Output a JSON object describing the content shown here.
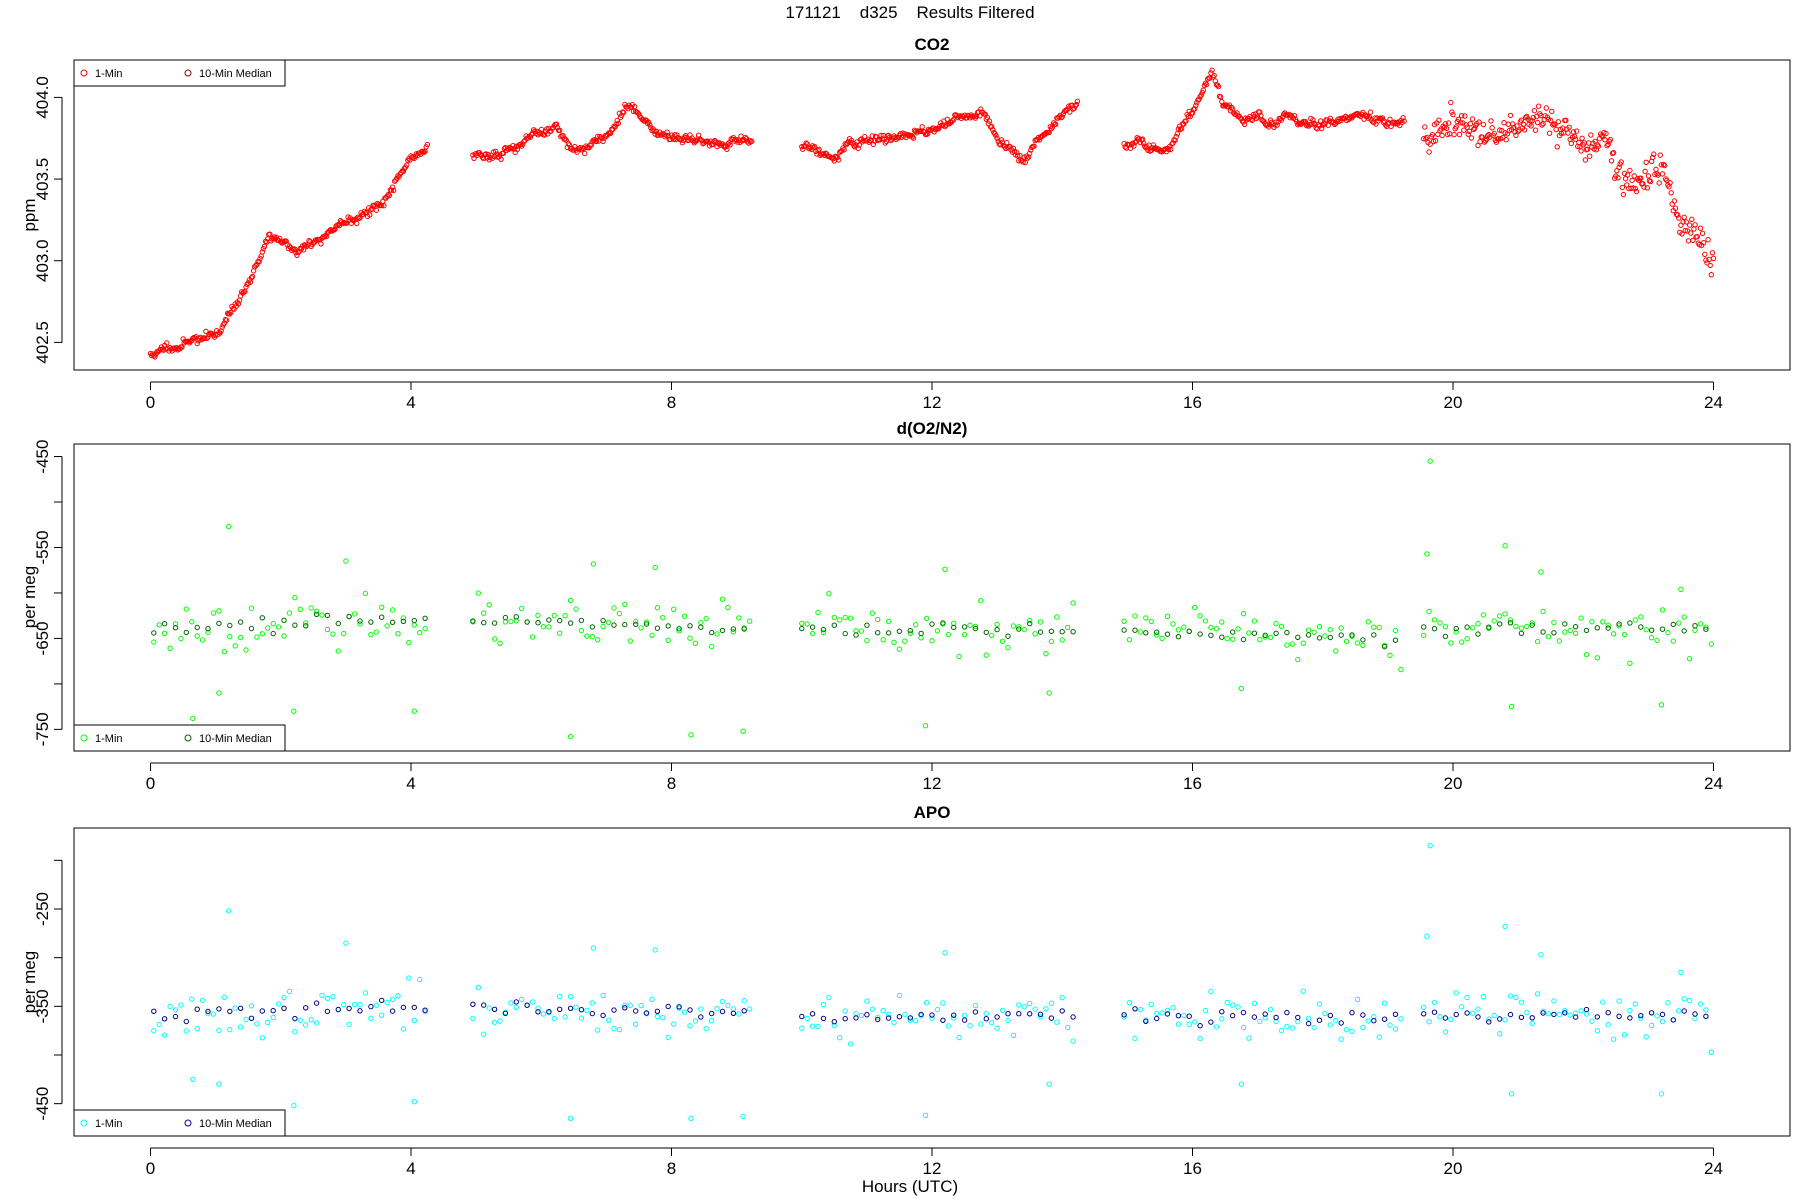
{
  "figure": {
    "suptitle": "171121    d325    Results Filtered",
    "xlabel": "Hours (UTC)"
  },
  "chart_data": [
    {
      "type": "scatter",
      "title": "CO2",
      "ylabel": "ppm",
      "xlim": [
        -0.96,
        24.96
      ],
      "ylim": [
        402.38,
        404.18
      ],
      "xticks": [
        0,
        4,
        8,
        12,
        16,
        20,
        24
      ],
      "yticks": [
        402.5,
        403.0,
        403.5,
        404.0
      ],
      "ytick_labels": [
        "402.5",
        "403.0",
        "403.5",
        "404.0"
      ],
      "legend": {
        "position": "top-left",
        "entries": [
          "1-Min",
          "10-Min Median"
        ]
      },
      "colors": {
        "one_min": "#ff0000",
        "median": "#8b0000"
      },
      "style": "continuous",
      "segments": [
        [
          0.0,
          4.25
        ],
        [
          4.95,
          9.25
        ],
        [
          10.0,
          14.25
        ],
        [
          14.95,
          19.25
        ],
        [
          19.55,
          24.0
        ]
      ],
      "series": [
        {
          "name": "1-Min",
          "color": "#ff0000",
          "x": [
            0.0,
            0.5,
            1.0,
            1.5,
            1.8,
            2.0,
            2.2,
            2.5,
            3.0,
            3.5,
            4.0,
            4.25,
            4.95,
            5.5,
            6.0,
            6.2,
            6.5,
            7.0,
            7.4,
            7.7,
            8.0,
            8.5,
            9.0,
            9.25,
            10.0,
            10.5,
            11.0,
            11.5,
            12.0,
            12.5,
            12.8,
            13.0,
            13.4,
            13.7,
            14.0,
            14.25,
            14.95,
            15.3,
            15.6,
            16.0,
            16.3,
            16.5,
            16.8,
            17.0,
            17.5,
            18.0,
            18.5,
            19.0,
            19.25,
            19.55,
            20.0,
            20.5,
            21.0,
            21.5,
            22.0,
            22.3,
            22.6,
            22.9,
            23.2,
            23.5,
            23.8,
            24.0
          ],
          "y": [
            402.42,
            402.5,
            402.55,
            402.85,
            403.15,
            403.15,
            403.05,
            403.1,
            403.25,
            403.35,
            403.6,
            403.68,
            403.65,
            403.68,
            403.78,
            403.85,
            403.72,
            403.75,
            403.95,
            403.78,
            403.75,
            403.68,
            403.72,
            403.7,
            403.7,
            403.65,
            403.72,
            403.8,
            403.8,
            403.88,
            403.82,
            403.7,
            403.6,
            403.75,
            403.85,
            403.95,
            403.7,
            403.65,
            403.7,
            403.9,
            404.2,
            403.95,
            403.88,
            403.9,
            403.9,
            403.88,
            403.9,
            403.86,
            403.85,
            403.75,
            403.85,
            403.75,
            403.8,
            403.85,
            403.7,
            403.78,
            403.55,
            403.45,
            403.55,
            403.25,
            403.2,
            402.95
          ]
        }
      ]
    },
    {
      "type": "scatter",
      "title": "d(O2/N2)",
      "ylabel": "per meg",
      "xlim": [
        -0.96,
        24.96
      ],
      "ylim": [
        -765,
        -445
      ],
      "xticks": [
        0,
        4,
        8,
        12,
        16,
        20,
        24
      ],
      "yticks": [
        -750,
        -700,
        -650,
        -600,
        -550,
        -500,
        -450
      ],
      "ytick_labels": [
        "-750",
        "",
        "-650",
        "",
        "-550",
        "",
        "-450"
      ],
      "legend": {
        "position": "bottom-left",
        "entries": [
          "1-Min",
          "10-Min Median"
        ]
      },
      "colors": {
        "one_min": "#00ff00",
        "median": "#006400"
      },
      "style": "noisy",
      "segments": [
        [
          0.05,
          4.25
        ],
        [
          4.95,
          9.25
        ],
        [
          10.0,
          14.25
        ],
        [
          14.95,
          19.25
        ],
        [
          19.55,
          24.0
        ]
      ],
      "series": [
        {
          "name": "1-Min",
          "color": "#00ff00",
          "x": [
            0.0,
            4.0,
            4.95,
            9.25,
            10.0,
            14.25,
            14.95,
            19.25,
            19.55,
            24.0
          ],
          "y": [
            -640,
            -628,
            -632,
            -640,
            -640,
            -642,
            -642,
            -650,
            -638,
            -640
          ]
        }
      ],
      "outliers": [
        [
          1.2,
          -527
        ],
        [
          1.05,
          -710
        ],
        [
          0.65,
          -738
        ],
        [
          2.2,
          -730
        ],
        [
          4.05,
          -730
        ],
        [
          3.0,
          -565
        ],
        [
          6.45,
          -758
        ],
        [
          6.8,
          -568
        ],
        [
          7.75,
          -572
        ],
        [
          8.3,
          -756
        ],
        [
          9.1,
          -752
        ],
        [
          12.2,
          -574
        ],
        [
          11.9,
          -746
        ],
        [
          13.8,
          -710
        ],
        [
          16.75,
          -705
        ],
        [
          19.65,
          -455
        ],
        [
          19.6,
          -557
        ],
        [
          20.8,
          -548
        ],
        [
          20.9,
          -725
        ],
        [
          21.35,
          -577
        ],
        [
          23.2,
          -723
        ],
        [
          23.5,
          -596
        ]
      ]
    },
    {
      "type": "scatter",
      "title": "APO",
      "ylabel": "per meg",
      "xlim": [
        -0.96,
        24.96
      ],
      "ylim": [
        -475,
        -175
      ],
      "xticks": [
        0,
        4,
        8,
        12,
        16,
        20,
        24
      ],
      "yticks": [
        -450,
        -400,
        -350,
        -300,
        -250,
        -200
      ],
      "ytick_labels": [
        "-450",
        "",
        "-350",
        "",
        "-250",
        ""
      ],
      "legend": {
        "position": "bottom-left",
        "entries": [
          "1-Min",
          "10-Min Median"
        ]
      },
      "colors": {
        "one_min": "#00ffff",
        "median": "#00008b"
      },
      "style": "noisy",
      "segments": [
        [
          0.05,
          4.25
        ],
        [
          4.95,
          9.25
        ],
        [
          10.0,
          14.25
        ],
        [
          14.95,
          19.25
        ],
        [
          19.55,
          24.0
        ]
      ],
      "series": [
        {
          "name": "1-Min",
          "color": "#00ffff",
          "x": [
            0.0,
            4.0,
            4.95,
            9.25,
            10.0,
            14.25,
            14.95,
            19.25,
            19.55,
            24.0
          ],
          "y": [
            -362,
            -350,
            -350,
            -358,
            -360,
            -360,
            -360,
            -365,
            -358,
            -360
          ]
        }
      ],
      "outliers": [
        [
          1.2,
          -252
        ],
        [
          1.05,
          -430
        ],
        [
          0.65,
          -425
        ],
        [
          2.2,
          -452
        ],
        [
          4.05,
          -448
        ],
        [
          3.0,
          -285
        ],
        [
          6.45,
          -465
        ],
        [
          6.8,
          -290
        ],
        [
          7.75,
          -292
        ],
        [
          8.3,
          -465
        ],
        [
          9.1,
          -463
        ],
        [
          12.2,
          -295
        ],
        [
          11.9,
          -462
        ],
        [
          13.8,
          -430
        ],
        [
          16.75,
          -430
        ],
        [
          19.65,
          -185
        ],
        [
          19.6,
          -278
        ],
        [
          20.8,
          -268
        ],
        [
          20.9,
          -440
        ],
        [
          21.35,
          -297
        ],
        [
          23.2,
          -440
        ],
        [
          23.5,
          -315
        ]
      ]
    }
  ]
}
